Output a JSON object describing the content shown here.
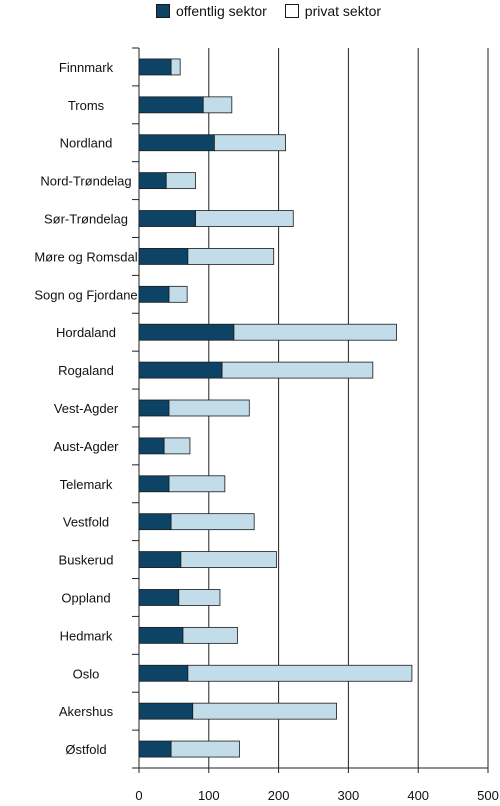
{
  "chart_data": {
    "type": "bar",
    "orientation": "horizontal",
    "stacked": true,
    "categories": [
      "Finnmark",
      "Troms",
      "Nordland",
      "Nord-Trøndelag",
      "Sør-Trøndelag",
      "Møre og Romsdal",
      "Sogn og Fjordane",
      "Hordaland",
      "Rogaland",
      "Vest-Agder",
      "Aust-Agder",
      "Telemark",
      "Vestfold",
      "Buskerud",
      "Oppland",
      "Hedmark",
      "Oslo",
      "Akershus",
      "Østfold"
    ],
    "series": [
      {
        "name": "offentlig sektor",
        "color": "#0d4466",
        "values": [
          46,
          92,
          108,
          39,
          81,
          70,
          43,
          136,
          119,
          43,
          36,
          43,
          46,
          60,
          57,
          63,
          70,
          77,
          46
        ]
      },
      {
        "name": "privat sektor",
        "color": "#c2dce9",
        "values": [
          13,
          41,
          102,
          42,
          140,
          123,
          26,
          233,
          216,
          115,
          37,
          80,
          119,
          137,
          59,
          78,
          321,
          206,
          98
        ]
      }
    ],
    "xlim": [
      0,
      500
    ],
    "xticks": [
      0,
      100,
      200,
      300,
      400,
      500
    ],
    "grid": "vertical",
    "legend": "top"
  }
}
